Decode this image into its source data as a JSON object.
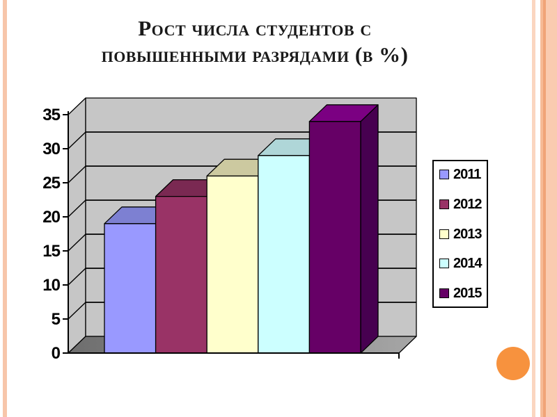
{
  "title": {
    "line1": "Рост числа студентов с",
    "line2": "повышенными разрядами (в %)",
    "full": "Рост числа студентов с повышенными разрядами (в %)"
  },
  "chart_data": {
    "type": "bar",
    "projection": "3d",
    "title": "Рост числа студентов с повышенными разрядами (в %)",
    "categories": [
      "2011",
      "2012",
      "2013",
      "2014",
      "2015"
    ],
    "values": [
      19,
      23,
      26,
      29,
      34
    ],
    "unit": "%",
    "ylim": [
      0,
      35
    ],
    "yticks": [
      0,
      5,
      10,
      15,
      20,
      25,
      30,
      35
    ],
    "grid": true,
    "legend_position": "right",
    "series_colors": [
      {
        "name": "2011",
        "front": "#9999FF",
        "top": "#7D80D2",
        "side": "#4D4D80"
      },
      {
        "name": "2012",
        "front": "#993366",
        "top": "#7A2952",
        "side": "#4D1A33"
      },
      {
        "name": "2013",
        "front": "#FFFFCC",
        "top": "#CCC9A0",
        "side": "#80805E"
      },
      {
        "name": "2014",
        "front": "#CCFFFF",
        "top": "#AFD6D8",
        "side": "#668080"
      },
      {
        "name": "2015",
        "front": "#660066",
        "top": "#7B0082",
        "side": "#470050"
      }
    ],
    "wall_color": "#C6C6C6",
    "floor_color_left": "#6E6E6E",
    "floor_color_right": "#A6A6A6",
    "axis_color": "#000000",
    "tick_label_color": "#000000"
  },
  "decorations": {
    "left_stripe_color": "#F7C6AA",
    "right_stripe_colors": [
      "#FBD6C0",
      "#F6BB96",
      "#F0A478",
      "#FACBB0"
    ],
    "orange_circle_color": "#F7923E"
  }
}
